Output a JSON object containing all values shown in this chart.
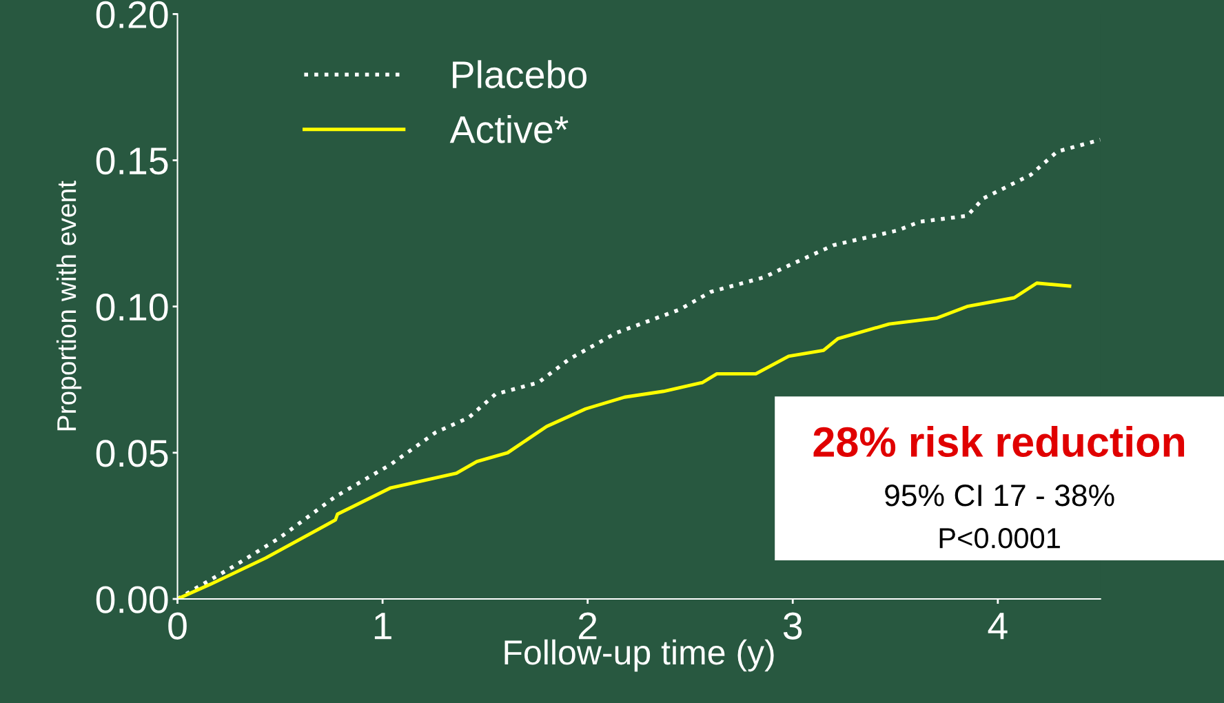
{
  "chart_data": {
    "type": "line",
    "xlabel": "Follow-up time (y)",
    "ylabel": "Proportion with event",
    "series": [
      {
        "name": "Placebo",
        "color": "#ffffff",
        "line_style": "dotted",
        "x": [
          0,
          0.27,
          0.5,
          0.77,
          1.04,
          1.26,
          1.42,
          1.55,
          1.76,
          1.91,
          2.14,
          2.45,
          2.6,
          2.86,
          2.98,
          3.2,
          3.51,
          3.62,
          3.85,
          3.93,
          4.16,
          4.29,
          4.5
        ],
        "values": [
          0,
          0.011,
          0.021,
          0.035,
          0.046,
          0.057,
          0.062,
          0.07,
          0.074,
          0.082,
          0.091,
          0.099,
          0.105,
          0.11,
          0.114,
          0.121,
          0.126,
          0.129,
          0.131,
          0.137,
          0.145,
          0.153,
          0.157
        ]
      },
      {
        "name": "Active*",
        "color": "#ffff00",
        "line_style": "solid",
        "x": [
          0,
          0.16,
          0.43,
          0.77,
          0.78,
          1.04,
          1.36,
          1.46,
          1.61,
          1.8,
          1.99,
          2.18,
          2.37,
          2.56,
          2.63,
          2.82,
          2.98,
          3.15,
          3.22,
          3.47,
          3.7,
          3.85,
          4.08,
          4.19,
          4.35
        ],
        "values": [
          0,
          0.005,
          0.014,
          0.027,
          0.029,
          0.038,
          0.043,
          0.047,
          0.05,
          0.059,
          0.065,
          0.069,
          0.071,
          0.074,
          0.077,
          0.077,
          0.083,
          0.085,
          0.089,
          0.094,
          0.096,
          0.1,
          0.103,
          0.108,
          0.107
        ]
      }
    ],
    "xlim": [
      0,
      4.5
    ],
    "xticks": [
      0,
      1,
      2,
      3,
      4
    ],
    "ylim": [
      0,
      0.2
    ],
    "yticks": [
      {
        "value": 0,
        "label": "0.00"
      },
      {
        "value": 0.05,
        "label": "0.05"
      },
      {
        "value": 0.1,
        "label": "0.10"
      },
      {
        "value": 0.15,
        "label": "0.15"
      },
      {
        "value": 0.2,
        "label": "0.20"
      }
    ],
    "legend": "top left",
    "grid": false,
    "annotations": [
      "28% risk reduction",
      "95% CI 17 - 38%",
      "P<0.0001"
    ]
  }
}
